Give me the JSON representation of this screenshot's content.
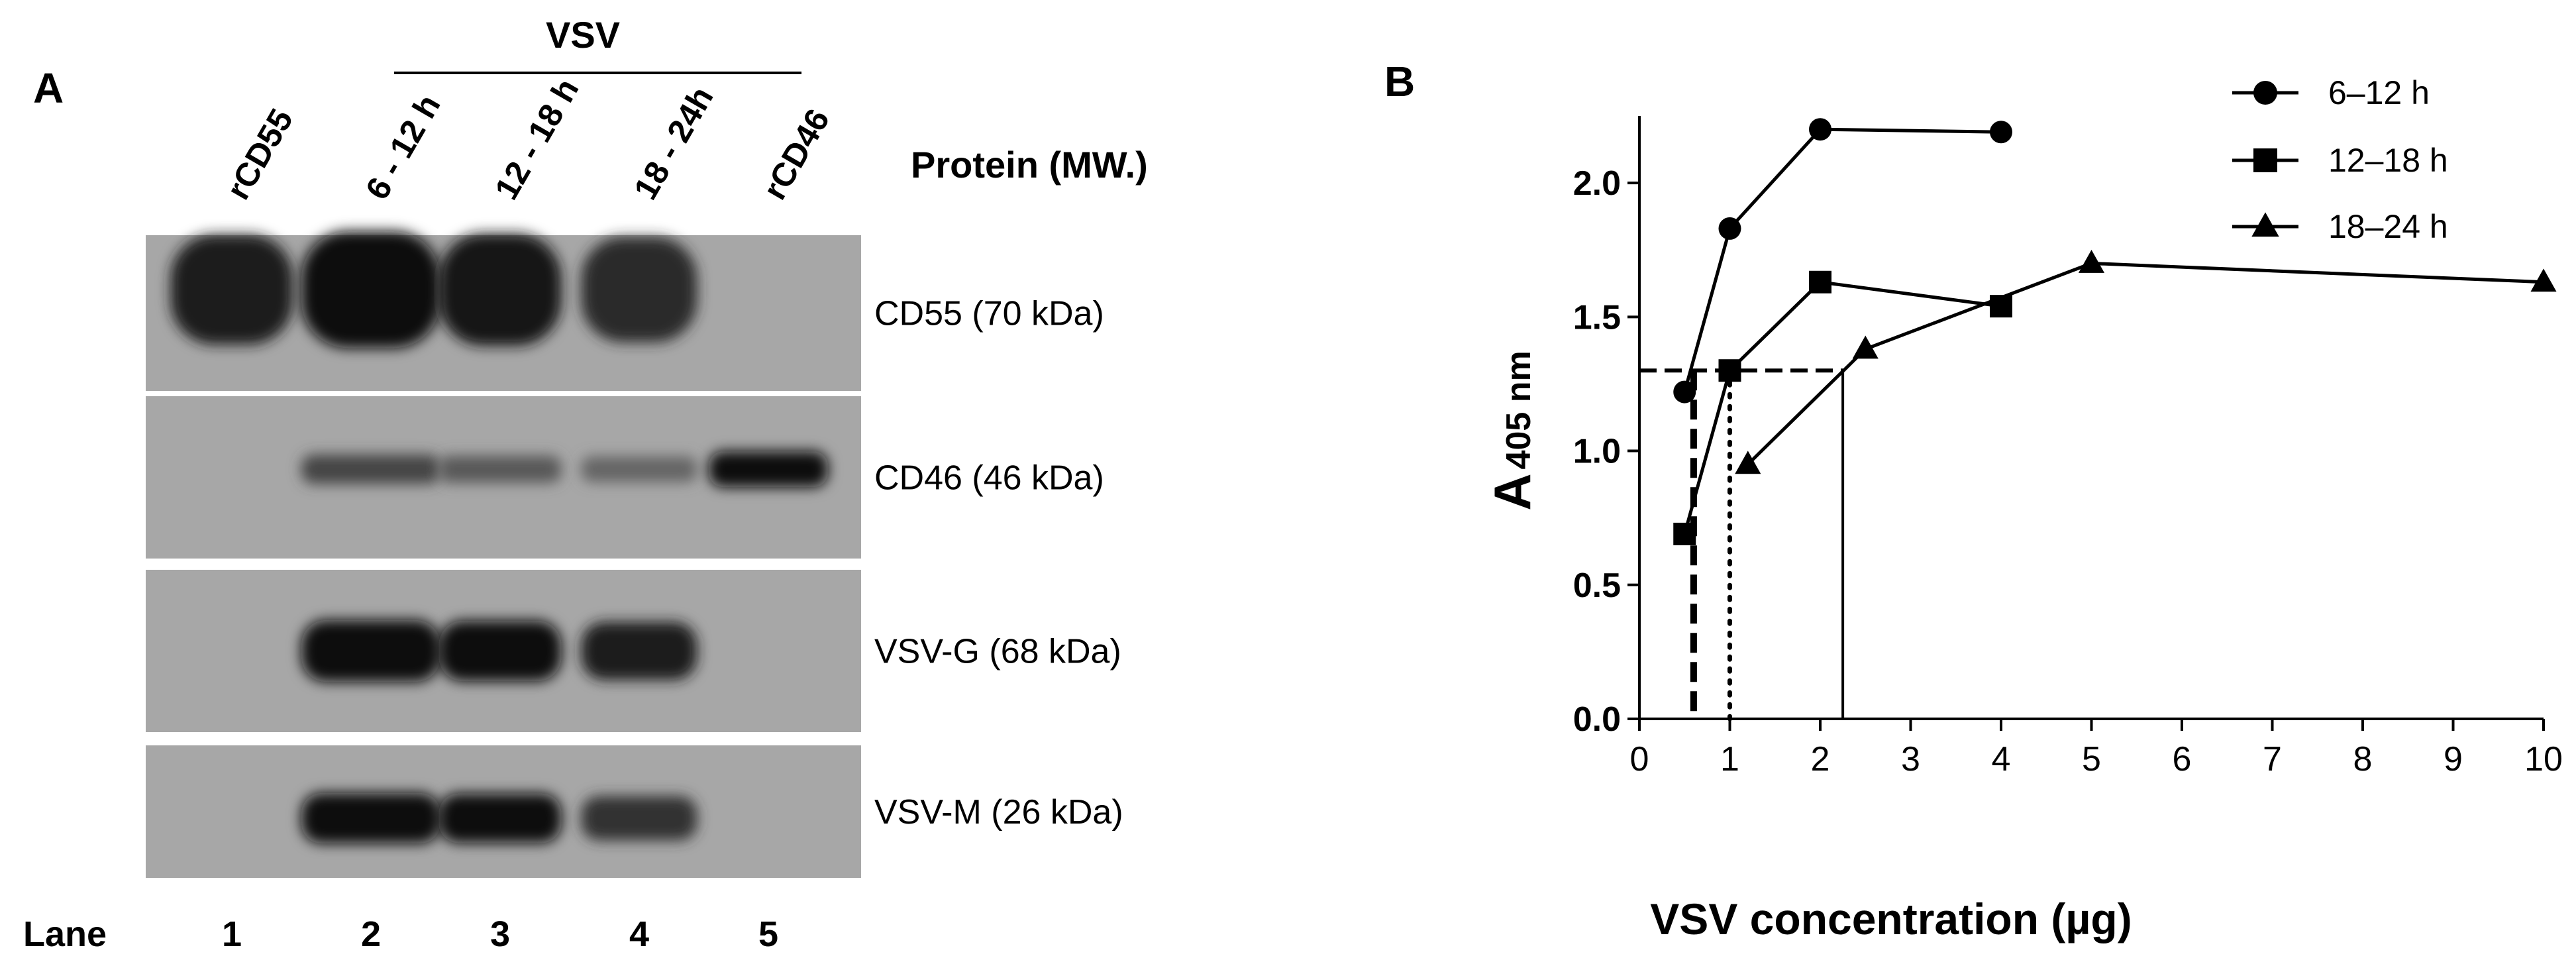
{
  "panels": {
    "a_label": "A",
    "b_label": "B"
  },
  "western_blot": {
    "group_label": "VSV",
    "column_header": "Protein (MW.)",
    "lane_title": "Lane",
    "columns": [
      {
        "label": "rCD55",
        "lane": "1"
      },
      {
        "label": "6 - 12 h",
        "lane": "2"
      },
      {
        "label": "12 - 18 h",
        "lane": "3"
      },
      {
        "label": "18 - 24h",
        "lane": "4"
      },
      {
        "label": "rCD46",
        "lane": "5"
      }
    ],
    "rows": [
      {
        "protein": "CD55 (70 kDa)",
        "band_intensity": [
          0.85,
          1.0,
          0.9,
          0.75,
          0.0
        ]
      },
      {
        "protein": "CD46 (46 kDa)",
        "band_intensity": [
          0.0,
          0.55,
          0.4,
          0.3,
          1.0
        ]
      },
      {
        "protein": "VSV-G (68 kDa)",
        "band_intensity": [
          0.0,
          1.0,
          0.95,
          0.85,
          0.0
        ]
      },
      {
        "protein": "VSV-M (26 kDa)",
        "band_intensity": [
          0.0,
          1.0,
          0.95,
          0.7,
          0.0
        ]
      }
    ]
  },
  "chart_data": {
    "type": "line",
    "xlabel": "VSV concentration (µg)",
    "ylabel_main": "A",
    "ylabel_sub": "405 nm",
    "xlim": [
      0,
      10
    ],
    "ylim": [
      0,
      2.2
    ],
    "xticks": [
      0,
      1,
      2,
      3,
      4,
      5,
      6,
      7,
      8,
      9,
      10
    ],
    "yticks": [
      0.0,
      0.5,
      1.0,
      1.5,
      2.0
    ],
    "ytick_labels": [
      "0.0",
      "0.5",
      "1.0",
      "1.5",
      "2.0"
    ],
    "legend_position": "top-right",
    "series": [
      {
        "name": "6–12 h",
        "marker": "circle",
        "x": [
          0.5,
          1,
          2,
          4
        ],
        "y": [
          1.22,
          1.83,
          2.2,
          2.19
        ]
      },
      {
        "name": "12–18 h",
        "marker": "square",
        "x": [
          0.5,
          1,
          2,
          4
        ],
        "y": [
          0.69,
          1.3,
          1.63,
          1.54
        ]
      },
      {
        "name": "18–24 h",
        "marker": "triangle",
        "x": [
          1.2,
          2.5,
          5,
          10
        ],
        "y": [
          0.95,
          1.38,
          1.7,
          1.63
        ]
      }
    ],
    "reference_level": 1.3,
    "reference_x": [
      0.6,
      1.0,
      2.25
    ]
  }
}
